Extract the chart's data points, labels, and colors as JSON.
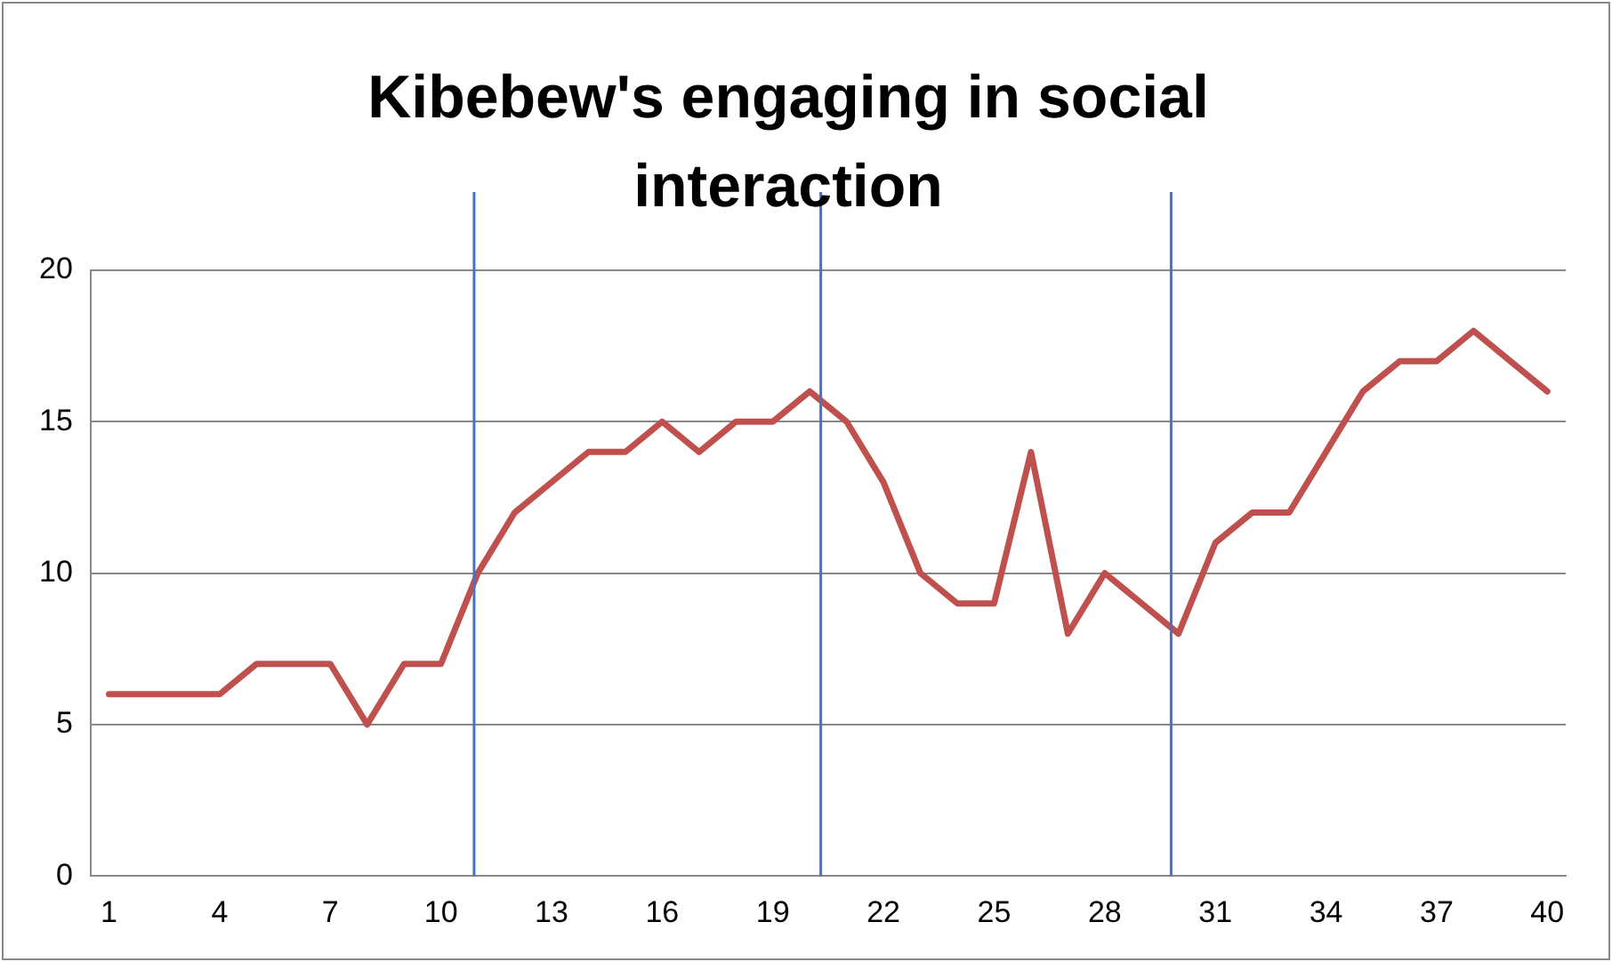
{
  "chart_data": {
    "type": "line",
    "title": "Kibebew's engaging in social interaction",
    "x": [
      1,
      2,
      3,
      4,
      5,
      6,
      7,
      8,
      9,
      10,
      11,
      12,
      13,
      14,
      15,
      16,
      17,
      18,
      19,
      20,
      21,
      22,
      23,
      24,
      25,
      26,
      27,
      28,
      29,
      30,
      31,
      32,
      33,
      34,
      35,
      36,
      37,
      38,
      39,
      40
    ],
    "series": [
      {
        "color": "#c0504d",
        "values": [
          6,
          6,
          6,
          6,
          7,
          7,
          7,
          5,
          7,
          7,
          10,
          12,
          13,
          14,
          14,
          15,
          14,
          15,
          15,
          16,
          15,
          13,
          10,
          9,
          9,
          14,
          8,
          10,
          9,
          8,
          11,
          12,
          12,
          14,
          16,
          17,
          17,
          18,
          17,
          16
        ]
      }
    ],
    "xlim": [
      0.5,
      40.5
    ],
    "xticks": [
      1,
      4,
      7,
      10,
      13,
      16,
      19,
      22,
      25,
      28,
      31,
      34,
      37,
      40
    ],
    "ylim": [
      0,
      20
    ],
    "yticks": [
      0,
      5,
      10,
      15,
      20
    ],
    "ref_lines": [
      {
        "axis": "x",
        "value": 10.9,
        "color": "#4472c4"
      },
      {
        "axis": "x",
        "value": 20.3,
        "color": "#4472c4"
      },
      {
        "axis": "x",
        "value": 29.8,
        "color": "#4472c4"
      }
    ],
    "grid": "y",
    "legend": false,
    "marker": "none",
    "line_style": "solid"
  }
}
